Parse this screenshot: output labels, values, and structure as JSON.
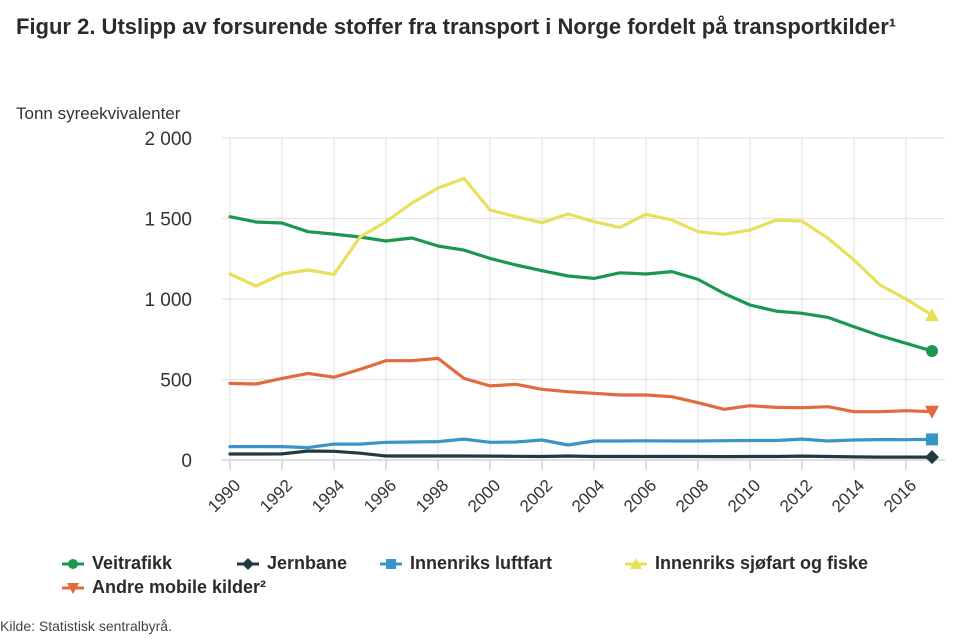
{
  "title": "Figur 2. Utslipp av forsurende stoffer fra transport i Norge fordelt på transportkilder¹",
  "source": "Kilde: Statistisk sentralbyrå.",
  "chart_data": {
    "type": "line",
    "title": "Figur 2. Utslipp av forsurende stoffer fra transport i Norge fordelt på transportkilder¹",
    "ylabel": "Tonn syreekvivalenter",
    "xlabel": "",
    "ylim": [
      0,
      2000
    ],
    "yticks": [
      0,
      500,
      1000,
      1500,
      2000
    ],
    "ytick_labels": [
      "0",
      "500",
      "1 000",
      "1 500",
      "2 000"
    ],
    "xticks": [
      1990,
      1992,
      1994,
      1996,
      1998,
      2000,
      2002,
      2004,
      2006,
      2008,
      2010,
      2012,
      2014,
      2016
    ],
    "xtick_labels": [
      "1990",
      "1992",
      "1994",
      "1996",
      "1998",
      "2000",
      "2002",
      "2004",
      "2006",
      "2008",
      "2010",
      "2012",
      "2014",
      "2016"
    ],
    "xlim": [
      1990,
      2017
    ],
    "grid": true,
    "legend_position": "bottom",
    "x": [
      1990,
      1991,
      1992,
      1993,
      1994,
      1995,
      1996,
      1997,
      1998,
      1999,
      2000,
      2001,
      2002,
      2003,
      2004,
      2005,
      2006,
      2007,
      2008,
      2009,
      2010,
      2011,
      2012,
      2013,
      2014,
      2015,
      2016,
      2017
    ],
    "series": [
      {
        "name": "Veitrafikk",
        "color": "#1a9850",
        "marker": "circle",
        "values": [
          1511,
          1478,
          1472,
          1418,
          1403,
          1385,
          1360,
          1379,
          1329,
          1304,
          1252,
          1211,
          1176,
          1143,
          1128,
          1163,
          1155,
          1170,
          1122,
          1035,
          963,
          925,
          911,
          886,
          828,
          772,
          725,
          677
        ]
      },
      {
        "name": "Jernbane",
        "color": "#1f3b3f",
        "marker": "diamond",
        "values": [
          37,
          37,
          38,
          56,
          54,
          42,
          25,
          25,
          25,
          25,
          24,
          23,
          22,
          25,
          22,
          22,
          22,
          22,
          22,
          21,
          22,
          22,
          24,
          22,
          19,
          18,
          18,
          18
        ]
      },
      {
        "name": "Innenriks luftfart",
        "color": "#3a94c8",
        "marker": "square",
        "values": [
          83,
          83,
          83,
          77,
          99,
          99,
          110,
          112,
          114,
          130,
          110,
          112,
          124,
          93,
          118,
          118,
          119,
          118,
          118,
          120,
          121,
          121,
          130,
          118,
          124,
          127,
          126,
          128
        ]
      },
      {
        "name": "Innenriks sjøfart og fiske",
        "color": "#e8e05a",
        "marker": "triangle-up",
        "values": [
          1155,
          1081,
          1155,
          1180,
          1153,
          1385,
          1480,
          1596,
          1689,
          1749,
          1553,
          1511,
          1474,
          1528,
          1480,
          1445,
          1526,
          1490,
          1418,
          1402,
          1428,
          1490,
          1484,
          1377,
          1242,
          1087,
          1000,
          900
        ]
      },
      {
        "name": "Andre mobile kilder²",
        "color": "#e26a3c",
        "marker": "triangle-down",
        "values": [
          476,
          472,
          507,
          538,
          514,
          563,
          617,
          617,
          631,
          507,
          460,
          470,
          439,
          424,
          414,
          404,
          404,
          393,
          356,
          315,
          337,
          327,
          325,
          331,
          300,
          300,
          306,
          300
        ]
      }
    ]
  }
}
